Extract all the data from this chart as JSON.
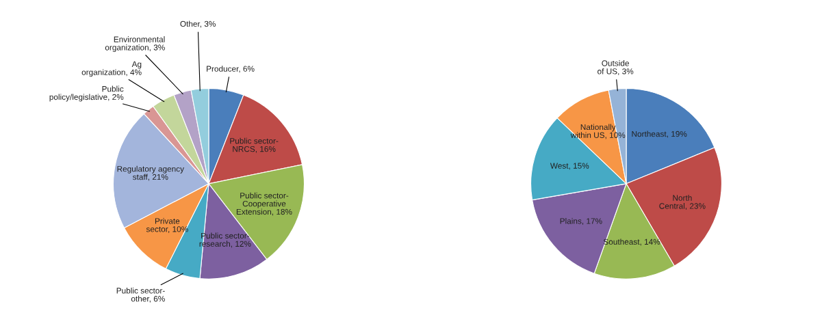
{
  "chart_data": [
    {
      "type": "pie",
      "categories": [
        "Producer",
        "Public sector-NRCS",
        "Public sector-Cooperative Extension",
        "Public sector-research",
        "Public sector-other",
        "Private sector",
        "Regulatory agency staff",
        "Public policy/legislative",
        "Ag organization",
        "Environmental organization",
        "Other"
      ],
      "values": [
        6,
        16,
        18,
        12,
        6,
        10,
        21,
        2,
        4,
        3,
        3
      ],
      "value_labels": [
        "6%",
        "16%",
        "18%",
        "12%",
        "6%",
        "10%",
        "21%",
        "2%",
        "4%",
        "3%",
        "3%"
      ],
      "colors": [
        "#4a7ebb",
        "#be4b48",
        "#98b954",
        "#7d60a0",
        "#46aac5",
        "#f79646",
        "#a3b5dc",
        "#d99694",
        "#c3d69b",
        "#b3a2c7",
        "#93cddd"
      ]
    },
    {
      "type": "pie",
      "categories": [
        "Northeast",
        "North Central",
        "Southeast",
        "Plains",
        "West",
        "Nationally within US",
        "Outside of US"
      ],
      "values": [
        19,
        23,
        14,
        17,
        15,
        10,
        3
      ],
      "value_labels": [
        "19%",
        "23%",
        "14%",
        "17%",
        "15%",
        "10%",
        "3%"
      ],
      "colors": [
        "#4a7ebb",
        "#be4b48",
        "#98b954",
        "#7d60a0",
        "#46aac5",
        "#f79646",
        "#95b3d7"
      ]
    }
  ]
}
